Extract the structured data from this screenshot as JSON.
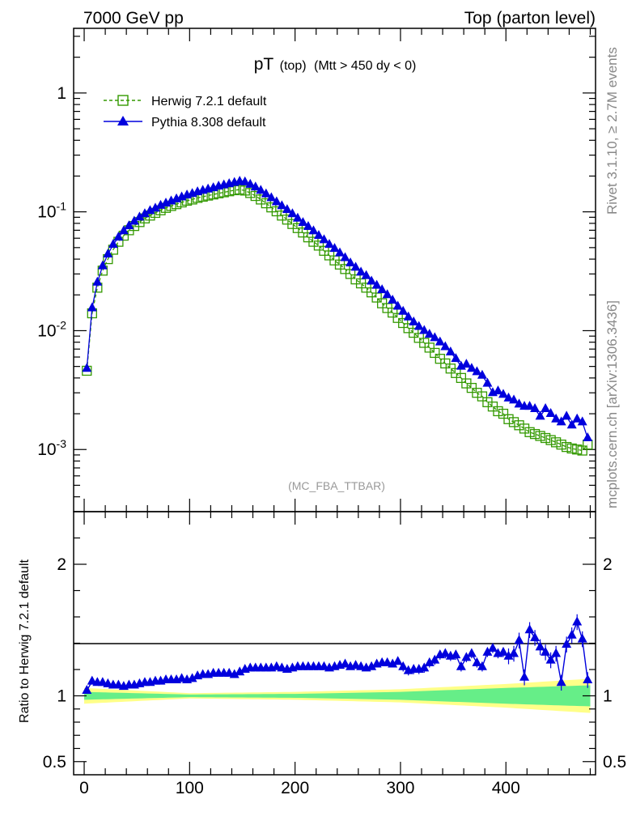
{
  "header": {
    "left": "7000 GeV pp",
    "right": "Top (parton level)"
  },
  "plot_title": {
    "main": "pT",
    "sub1": "(top)",
    "sub2": "(Mtt > 450 dy < 0)"
  },
  "analysis_tag": "(MC_FBA_TTBAR)",
  "side_text": {
    "rivet": "Rivet 3.1.10, ≥ 2.7M events",
    "mcplots": "mcplots.cern.ch [arXiv:1306.3436]"
  },
  "colors": {
    "herwig": "#339900",
    "pythia": "#0000dd",
    "band_yellow": "#ffff88",
    "band_green": "#66ee88"
  },
  "chart_data": [
    {
      "type": "line",
      "scale": "log",
      "xlim": [
        -10,
        485
      ],
      "ylim": [
        0.0003,
        3.5
      ],
      "y_ticks": [
        "10^-3",
        "10^-2",
        "10^-1",
        "1"
      ],
      "series": [
        {
          "name": "Herwig 7.2.1 default",
          "marker": "open-square",
          "line": "dashed",
          "x": [
            2.5,
            7.5,
            12.5,
            17.5,
            22.5,
            27.5,
            32.5,
            37.5,
            42.5,
            47.5,
            52.5,
            57.5,
            62.5,
            67.5,
            72.5,
            77.5,
            82.5,
            87.5,
            92.5,
            97.5,
            102.5,
            107.5,
            112.5,
            117.5,
            122.5,
            127.5,
            132.5,
            137.5,
            142.5,
            147.5,
            152.5,
            157.5,
            162.5,
            167.5,
            172.5,
            177.5,
            182.5,
            187.5,
            192.5,
            197.5,
            202.5,
            207.5,
            212.5,
            217.5,
            222.5,
            227.5,
            232.5,
            237.5,
            242.5,
            247.5,
            252.5,
            257.5,
            262.5,
            267.5,
            272.5,
            277.5,
            282.5,
            287.5,
            292.5,
            297.5,
            302.5,
            307.5,
            312.5,
            317.5,
            322.5,
            327.5,
            332.5,
            337.5,
            342.5,
            347.5,
            352.5,
            357.5,
            362.5,
            367.5,
            372.5,
            377.5,
            382.5,
            387.5,
            392.5,
            397.5,
            402.5,
            407.5,
            412.5,
            417.5,
            422.5,
            427.5,
            432.5,
            437.5,
            442.5,
            447.5,
            452.5,
            457.5,
            462.5,
            467.5,
            472.5,
            477.5
          ],
          "values": [
            0.0046,
            0.014,
            0.023,
            0.032,
            0.04,
            0.048,
            0.056,
            0.063,
            0.07,
            0.076,
            0.082,
            0.088,
            0.093,
            0.098,
            0.103,
            0.108,
            0.112,
            0.116,
            0.12,
            0.124,
            0.127,
            0.131,
            0.134,
            0.137,
            0.14,
            0.143,
            0.146,
            0.149,
            0.152,
            0.154,
            0.151,
            0.144,
            0.136,
            0.127,
            0.118,
            0.109,
            0.101,
            0.093,
            0.086,
            0.079,
            0.073,
            0.067,
            0.061,
            0.056,
            0.052,
            0.047,
            0.043,
            0.039,
            0.036,
            0.033,
            0.03,
            0.027,
            0.025,
            0.023,
            0.021,
            0.019,
            0.017,
            0.0155,
            0.0142,
            0.0128,
            0.0116,
            0.0105,
            0.0096,
            0.0087,
            0.0079,
            0.0072,
            0.0065,
            0.0058,
            0.0053,
            0.0048,
            0.0044,
            0.004,
            0.0036,
            0.0033,
            0.003,
            0.0028,
            0.0025,
            0.0023,
            0.0021,
            0.002,
            0.0018,
            0.0017,
            0.0016,
            0.0015,
            0.0014,
            0.00135,
            0.0013,
            0.00125,
            0.0012,
            0.00115,
            0.0011,
            0.00105,
            0.00102,
            0.001,
            0.00098,
            0.0011
          ]
        },
        {
          "name": "Pythia 8.308 default",
          "marker": "filled-triangle",
          "line": "solid",
          "x": [
            2.5,
            7.5,
            12.5,
            17.5,
            22.5,
            27.5,
            32.5,
            37.5,
            42.5,
            47.5,
            52.5,
            57.5,
            62.5,
            67.5,
            72.5,
            77.5,
            82.5,
            87.5,
            92.5,
            97.5,
            102.5,
            107.5,
            112.5,
            117.5,
            122.5,
            127.5,
            132.5,
            137.5,
            142.5,
            147.5,
            152.5,
            157.5,
            162.5,
            167.5,
            172.5,
            177.5,
            182.5,
            187.5,
            192.5,
            197.5,
            202.5,
            207.5,
            212.5,
            217.5,
            222.5,
            227.5,
            232.5,
            237.5,
            242.5,
            247.5,
            252.5,
            257.5,
            262.5,
            267.5,
            272.5,
            277.5,
            282.5,
            287.5,
            292.5,
            297.5,
            302.5,
            307.5,
            312.5,
            317.5,
            322.5,
            327.5,
            332.5,
            337.5,
            342.5,
            347.5,
            352.5,
            357.5,
            362.5,
            367.5,
            372.5,
            377.5,
            382.5,
            387.5,
            392.5,
            397.5,
            402.5,
            407.5,
            412.5,
            417.5,
            422.5,
            427.5,
            432.5,
            437.5,
            442.5,
            447.5,
            452.5,
            457.5,
            462.5,
            467.5,
            472.5,
            477.5
          ],
          "values": [
            0.0048,
            0.0155,
            0.0255,
            0.035,
            0.044,
            0.053,
            0.061,
            0.069,
            0.076,
            0.083,
            0.09,
            0.096,
            0.102,
            0.107,
            0.113,
            0.118,
            0.123,
            0.128,
            0.133,
            0.138,
            0.142,
            0.147,
            0.151,
            0.155,
            0.159,
            0.164,
            0.168,
            0.172,
            0.176,
            0.18,
            0.178,
            0.17,
            0.161,
            0.151,
            0.141,
            0.131,
            0.121,
            0.112,
            0.104,
            0.096,
            0.088,
            0.081,
            0.075,
            0.069,
            0.063,
            0.058,
            0.053,
            0.049,
            0.045,
            0.041,
            0.037,
            0.034,
            0.031,
            0.029,
            0.026,
            0.024,
            0.022,
            0.02,
            0.018,
            0.016,
            0.0145,
            0.013,
            0.0118,
            0.0108,
            0.01,
            0.0093,
            0.0087,
            0.008,
            0.0073,
            0.0066,
            0.0058,
            0.005,
            0.0052,
            0.0048,
            0.0045,
            0.0042,
            0.0036,
            0.003,
            0.0031,
            0.0029,
            0.0027,
            0.0026,
            0.0024,
            0.0023,
            0.0023,
            0.0022,
            0.0019,
            0.0022,
            0.002,
            0.0018,
            0.0017,
            0.0019,
            0.0016,
            0.0018,
            0.0017,
            0.00125
          ]
        }
      ]
    },
    {
      "type": "line",
      "ylabel": "Ratio to Herwig 7.2.1 default",
      "ylim": [
        0.4,
        2.4
      ],
      "xlim": [
        -10,
        485
      ],
      "x_ticks": [
        0,
        100,
        200,
        300,
        400
      ],
      "y_ticks": [
        0.5,
        1,
        2
      ],
      "series": [
        {
          "name": "Pythia 8.308 default",
          "marker": "filled-triangle",
          "x": [
            2.5,
            7.5,
            12.5,
            17.5,
            22.5,
            27.5,
            32.5,
            37.5,
            42.5,
            47.5,
            52.5,
            57.5,
            62.5,
            67.5,
            72.5,
            77.5,
            82.5,
            87.5,
            92.5,
            97.5,
            102.5,
            107.5,
            112.5,
            117.5,
            122.5,
            127.5,
            132.5,
            137.5,
            142.5,
            147.5,
            152.5,
            157.5,
            162.5,
            167.5,
            172.5,
            177.5,
            182.5,
            187.5,
            192.5,
            197.5,
            202.5,
            207.5,
            212.5,
            217.5,
            222.5,
            227.5,
            232.5,
            237.5,
            242.5,
            247.5,
            252.5,
            257.5,
            262.5,
            267.5,
            272.5,
            277.5,
            282.5,
            287.5,
            292.5,
            297.5,
            302.5,
            307.5,
            312.5,
            317.5,
            322.5,
            327.5,
            332.5,
            337.5,
            342.5,
            347.5,
            352.5,
            357.5,
            362.5,
            367.5,
            372.5,
            377.5,
            382.5,
            387.5,
            392.5,
            397.5,
            402.5,
            407.5,
            412.5,
            417.5,
            422.5,
            427.5,
            432.5,
            437.5,
            442.5,
            447.5,
            452.5,
            457.5,
            462.5,
            467.5,
            472.5,
            477.5
          ],
          "values": [
            1.04,
            1.11,
            1.1,
            1.1,
            1.09,
            1.08,
            1.08,
            1.07,
            1.08,
            1.08,
            1.09,
            1.1,
            1.1,
            1.11,
            1.11,
            1.12,
            1.12,
            1.12,
            1.13,
            1.12,
            1.13,
            1.15,
            1.16,
            1.16,
            1.17,
            1.17,
            1.17,
            1.17,
            1.16,
            1.18,
            1.2,
            1.21,
            1.21,
            1.21,
            1.21,
            1.21,
            1.22,
            1.21,
            1.2,
            1.21,
            1.22,
            1.22,
            1.22,
            1.22,
            1.22,
            1.22,
            1.21,
            1.22,
            1.23,
            1.24,
            1.22,
            1.23,
            1.22,
            1.21,
            1.22,
            1.24,
            1.25,
            1.25,
            1.24,
            1.26,
            1.22,
            1.19,
            1.2,
            1.2,
            1.21,
            1.25,
            1.27,
            1.31,
            1.32,
            1.3,
            1.31,
            1.22,
            1.29,
            1.32,
            1.25,
            1.22,
            1.33,
            1.36,
            1.32,
            1.33,
            1.3,
            1.32,
            1.42,
            1.14,
            1.5,
            1.44,
            1.37,
            1.33,
            1.27,
            1.32,
            1.1,
            1.39,
            1.46,
            1.56,
            1.43,
            1.12
          ]
        }
      ],
      "band_yellow_halfwidth": {
        "x": [
          0,
          100,
          200,
          300,
          400,
          480
        ],
        "values": [
          0.06,
          0.02,
          0.03,
          0.05,
          0.09,
          0.13
        ]
      },
      "band_green_halfwidth": {
        "x": [
          0,
          100,
          200,
          300,
          400,
          480
        ],
        "values": [
          0.03,
          0.01,
          0.015,
          0.03,
          0.06,
          0.08
        ]
      }
    }
  ]
}
